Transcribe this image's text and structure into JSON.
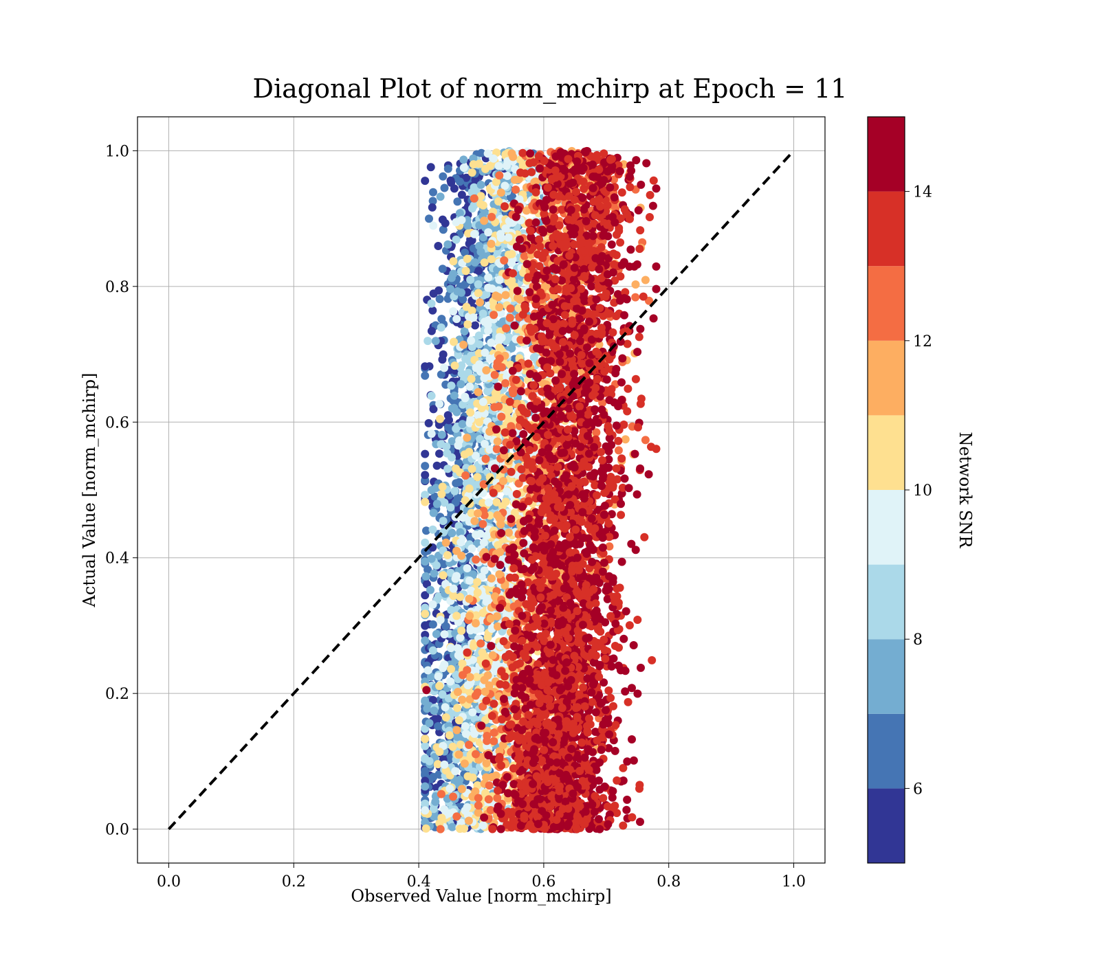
{
  "chart_data": {
    "type": "scatter",
    "title": "Diagonal Plot of norm_mchirp at Epoch = 11",
    "xlabel": "Observed Value [norm_mchirp]",
    "ylabel": "Actual Value [norm_mchirp]",
    "xlim": [
      -0.05,
      1.05
    ],
    "ylim": [
      -0.05,
      1.05
    ],
    "xticks": [
      0.0,
      0.2,
      0.4,
      0.6,
      0.8,
      1.0
    ],
    "yticks": [
      0.0,
      0.2,
      0.4,
      0.6,
      0.8,
      1.0
    ],
    "xtick_labels": [
      "0.0",
      "0.2",
      "0.4",
      "0.6",
      "0.8",
      "1.0"
    ],
    "ytick_labels": [
      "0.0",
      "0.2",
      "0.4",
      "0.6",
      "0.8",
      "1.0"
    ],
    "grid": true,
    "reference_line": {
      "x": [
        0.0,
        1.0
      ],
      "y": [
        0.0,
        1.0
      ],
      "style": "dashed",
      "color": "#000000"
    },
    "point_distribution": {
      "description_free_summary": [
        {
          "snr_range": [
            5,
            7
          ],
          "x_center_at_y0": 0.44,
          "x_center_at_y1": 0.5,
          "spread": 0.035
        },
        {
          "snr_range": [
            7,
            9
          ],
          "x_center_at_y0": 0.47,
          "x_center_at_y1": 0.54,
          "spread": 0.04
        },
        {
          "snr_range": [
            9,
            11
          ],
          "x_center_at_y0": 0.5,
          "x_center_at_y1": 0.57,
          "spread": 0.045
        },
        {
          "snr_range": [
            11,
            13
          ],
          "x_center_at_y0": 0.56,
          "x_center_at_y1": 0.64,
          "spread": 0.05
        },
        {
          "snr_range": [
            13,
            15
          ],
          "x_center_at_y0": 0.62,
          "x_center_at_y1": 0.66,
          "spread": 0.045
        }
      ],
      "x_range": [
        0.41,
        0.78
      ],
      "y_range": [
        0.0,
        1.0
      ]
    },
    "colorbar": {
      "label": "Network SNR",
      "min": 5,
      "max": 15,
      "bins": 10,
      "ticks": [
        6,
        8,
        10,
        12,
        14
      ],
      "tick_labels": [
        "6",
        "8",
        "10",
        "12",
        "14"
      ],
      "colors": [
        "#313695",
        "#4575b4",
        "#74add1",
        "#abd9e9",
        "#e0f3f8",
        "#fee090",
        "#fdae61",
        "#f46d43",
        "#d73027",
        "#a50026"
      ]
    }
  }
}
